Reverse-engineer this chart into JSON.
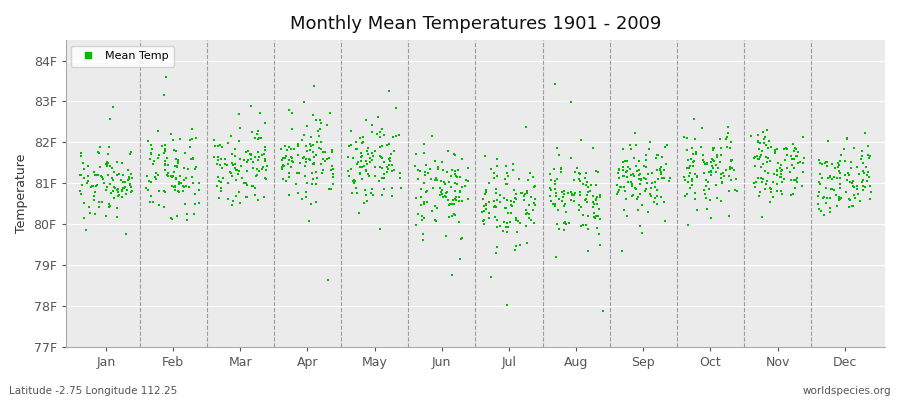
{
  "title": "Monthly Mean Temperatures 1901 - 2009",
  "ylabel": "Temperature",
  "xlabel_months": [
    "Jan",
    "Feb",
    "Mar",
    "Apr",
    "May",
    "Jun",
    "Jul",
    "Aug",
    "Sep",
    "Oct",
    "Nov",
    "Dec"
  ],
  "bottom_left": "Latitude -2.75 Longitude 112.25",
  "bottom_right": "worldspecies.org",
  "legend_label": "Mean Temp",
  "dot_color": "#00bb00",
  "bg_color": "#ebebeb",
  "ylim": [
    77.0,
    84.5
  ],
  "yticks": [
    77,
    78,
    79,
    80,
    81,
    82,
    83,
    84
  ],
  "ytick_labels": [
    "77F",
    "78F",
    "79F",
    "80F",
    "81F",
    "82F",
    "83F",
    "84F"
  ],
  "years": 109,
  "seed": 42,
  "monthly_means": [
    81.05,
    81.15,
    81.35,
    81.55,
    81.45,
    80.85,
    80.55,
    80.65,
    81.05,
    81.25,
    81.35,
    81.15
  ],
  "monthly_stds": [
    0.45,
    0.5,
    0.45,
    0.45,
    0.45,
    0.5,
    0.55,
    0.55,
    0.45,
    0.45,
    0.45,
    0.45
  ]
}
